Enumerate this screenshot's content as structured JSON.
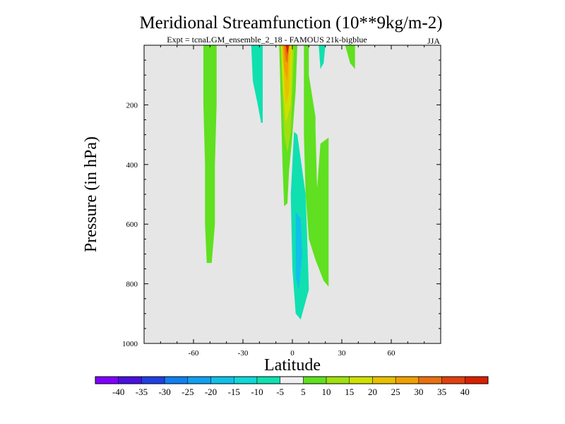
{
  "chart_data": {
    "type": "contour",
    "title": "Meridional Streamfunction (10**9kg/m-2)",
    "subtitle": "Expt = tcnaLGM_ensemble_2_18 - FAMOUS 21k-bigblue",
    "season": "JJA",
    "xlabel": "Latitude",
    "ylabel": "Pressure (in hPa)",
    "xlim": [
      -90,
      90
    ],
    "ylim": [
      1000,
      0
    ],
    "x_ticks": [
      -60,
      -30,
      0,
      30,
      60
    ],
    "y_ticks": [
      200,
      400,
      600,
      800,
      1000
    ],
    "colorbar": {
      "levels": [
        "-40",
        "-35",
        "-30",
        "-25",
        "-20",
        "-15",
        "-10",
        "-5",
        "5",
        "10",
        "15",
        "20",
        "25",
        "30",
        "35",
        "40"
      ],
      "colors": [
        "#7f00ff",
        "#4a10e0",
        "#2040e0",
        "#1080f0",
        "#10a0f0",
        "#10c0e8",
        "#10d8d8",
        "#10e0b0",
        "#f0f0f0",
        "#60e020",
        "#a0e010",
        "#d0e000",
        "#e8c000",
        "#f0a000",
        "#e87010",
        "#e04010",
        "#d82000"
      ]
    },
    "regions": [
      {
        "name": "green-band-55S",
        "bin": "5 to 10",
        "color": "#60e020",
        "lat_range": [
          -54,
          -46
        ],
        "p_range": [
          0,
          730
        ]
      },
      {
        "name": "cyan-cell-25S",
        "bin": "-10 to -5",
        "color": "#10e0b0",
        "lat_range": [
          -25,
          -18
        ],
        "p_range": [
          0,
          260
        ]
      },
      {
        "name": "hadley-positive-core",
        "bin": "5 to 40",
        "color": "#d82000",
        "lat_range": [
          -8,
          2
        ],
        "p_range": [
          0,
          540
        ],
        "max_value": 40
      },
      {
        "name": "negative-cell-5N",
        "bin": "-20 to -5",
        "color": "#10e0b0",
        "lat_range": [
          -1,
          10
        ],
        "p_range": [
          290,
          920
        ],
        "min_value": -20
      },
      {
        "name": "green-cell-15N",
        "bin": "5 to 10",
        "color": "#60e020",
        "lat_range": [
          7,
          22
        ],
        "p_range": [
          0,
          810
        ]
      },
      {
        "name": "cyan-cell-18N",
        "bin": "-10 to -5",
        "color": "#10e0b0",
        "lat_range": [
          16,
          20
        ],
        "p_range": [
          0,
          80
        ]
      },
      {
        "name": "green-cell-35N",
        "bin": "5 to 10",
        "color": "#60e020",
        "lat_range": [
          32,
          38
        ],
        "p_range": [
          0,
          80
        ]
      }
    ]
  }
}
